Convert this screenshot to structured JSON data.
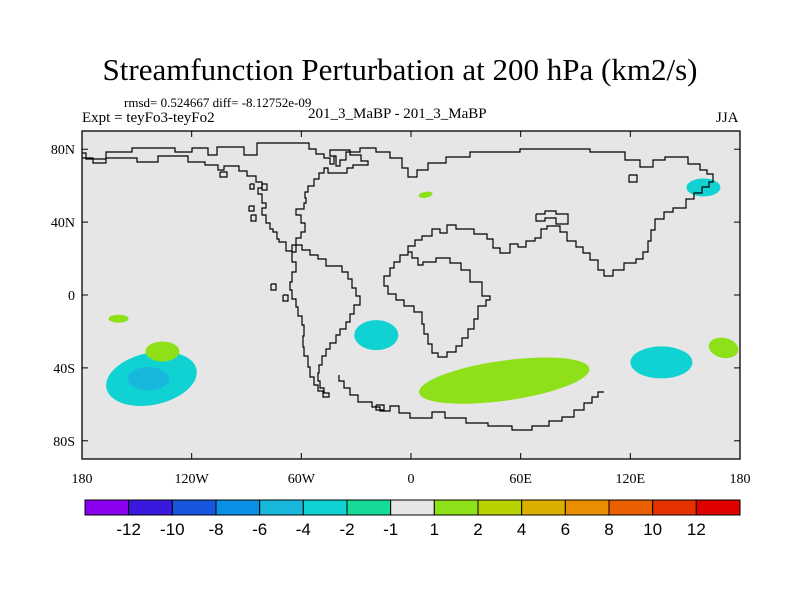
{
  "chart_data": {
    "type": "heatmap",
    "title": "Streamfunction Perturbation at 200 hPa (km2/s)",
    "stats_line": "rmsd= 0.524667 diff= -8.12752e-09",
    "left_label": "Expt = teyFo3-teyFo2",
    "center_label": "201_3_MaBP - 201_3_MaBP",
    "right_label": "JJA",
    "x_ticks": [
      "180",
      "120W",
      "60W",
      "0",
      "60E",
      "120E",
      "180"
    ],
    "y_ticks": [
      "80N",
      "40N",
      "0",
      "40S",
      "80S"
    ],
    "colorbar": {
      "labels": [
        "-12",
        "-10",
        "-8",
        "-6",
        "-4",
        "-2",
        "-1",
        "1",
        "2",
        "4",
        "6",
        "8",
        "10",
        "12"
      ],
      "colors": [
        "#8a00ee",
        "#3b18dd",
        "#1956e0",
        "#0a90e4",
        "#17b8dc",
        "#10d2d2",
        "#14dc96",
        "#e6e6e6",
        "#8ee018",
        "#b8d200",
        "#dcae00",
        "#e98e00",
        "#ea6000",
        "#e53300",
        "#e00000"
      ]
    },
    "anomalies": [
      {
        "lon": -142,
        "lat": -46,
        "value": -2,
        "peak": -4
      },
      {
        "lon": -160,
        "lat": -13,
        "value": 2
      },
      {
        "lon": -136,
        "lat": -31,
        "value": 2
      },
      {
        "lon": -19,
        "lat": -22,
        "value": -2
      },
      {
        "lon": 8,
        "lat": 55,
        "value": 2
      },
      {
        "lon": 51,
        "lat": -47,
        "value": 2
      },
      {
        "lon": 137,
        "lat": -37,
        "value": -2
      },
      {
        "lon": 160,
        "lat": 59,
        "value": -2
      },
      {
        "lon": 171,
        "lat": -29,
        "value": 2
      }
    ]
  }
}
